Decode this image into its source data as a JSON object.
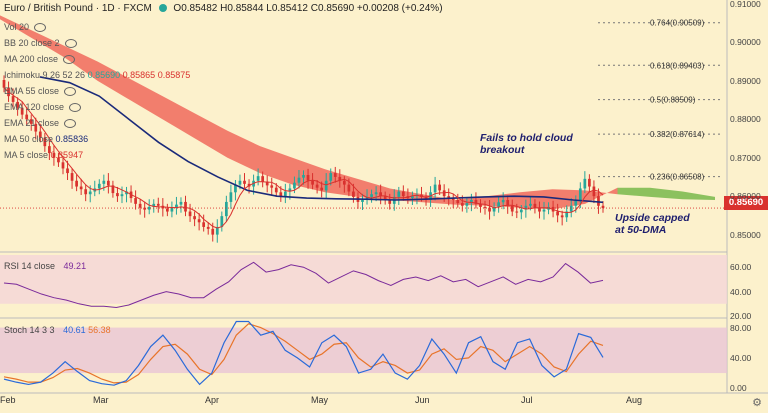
{
  "header": {
    "symbol": "Euro / British Pound",
    "interval": "1D",
    "exchange": "FXCM",
    "ohlc": "O0.85482  H0.85844  L0.85412  C0.85690  +0.00208 (+0.24%)"
  },
  "legend": {
    "vol": "Vol 20",
    "bb": "BB 20 close 2",
    "ma200": "MA 200 close",
    "ichimoku_label": "Ichimoku 9 26 52 26",
    "ichimoku_values": [
      "0.85690",
      "0.85865",
      "0.85875"
    ],
    "ema55": "EMA 55 close",
    "ema120": "EMA 120 close",
    "ema_x": "EMA 21 close",
    "ma50_label": "MA 50 close",
    "ma50_value": "0.85836",
    "ma5_label": "MA 5 close",
    "ma5_value": "0.85947"
  },
  "annotations": {
    "fail_line1": "Fails to hold cloud",
    "fail_line2": "breakout",
    "upside_line1": "Upside capped",
    "upside_line2": "at 50-DMA"
  },
  "last_price": "0.85690",
  "colors": {
    "bull": "#26a69a",
    "bear": "#d9312e",
    "cloud_bear": "#f06a5c",
    "cloud_bull": "#78b84a",
    "ma50": "#1a2a7a",
    "ma5": "#d9312e",
    "rsi": "#7a2a9a",
    "stoch_k": "#2a6ad9",
    "stoch_d": "#e8742a"
  },
  "chart_data": [
    {
      "type": "candlestick",
      "title": "Euro / British Pound 1D FXCM",
      "ylim": [
        0.846,
        0.911
      ],
      "y_ticks": [
        "0.91000",
        "0.90000",
        "0.89000",
        "0.88000",
        "0.87000",
        "0.86000",
        "0.85000"
      ],
      "x_labels": [
        "Feb",
        "Mar",
        "Apr",
        "May",
        "Jun",
        "Jul",
        "Aug"
      ],
      "fib_levels": [
        {
          "label": "0.764(0.90509)",
          "value": 0.90509
        },
        {
          "label": "0.618(0.89403)",
          "value": 0.89403
        },
        {
          "label": "0.5(0.88509)",
          "value": 0.88509
        },
        {
          "label": "0.382(0.87614)",
          "value": 0.87614
        },
        {
          "label": "0.236(0.86508)",
          "value": 0.86508
        }
      ],
      "closes": [
        0.8882,
        0.886,
        0.8845,
        0.883,
        0.8812,
        0.88,
        0.8788,
        0.8768,
        0.8752,
        0.873,
        0.8712,
        0.87,
        0.8688,
        0.8672,
        0.866,
        0.864,
        0.8625,
        0.8618,
        0.8605,
        0.8612,
        0.862,
        0.8632,
        0.864,
        0.8628,
        0.8608,
        0.86,
        0.8605,
        0.8612,
        0.8595,
        0.858,
        0.857,
        0.8565,
        0.8572,
        0.858,
        0.8575,
        0.8568,
        0.856,
        0.857,
        0.8578,
        0.8585,
        0.856,
        0.8548,
        0.854,
        0.8532,
        0.852,
        0.8515,
        0.85,
        0.852,
        0.8548,
        0.8585,
        0.861,
        0.863,
        0.864,
        0.8632,
        0.8625,
        0.864,
        0.8652,
        0.8638,
        0.8628,
        0.8622,
        0.861,
        0.86,
        0.8612,
        0.862,
        0.8635,
        0.8648,
        0.8655,
        0.864,
        0.863,
        0.8622,
        0.8615,
        0.864,
        0.866,
        0.865,
        0.864,
        0.863,
        0.8612,
        0.8598,
        0.8585,
        0.859,
        0.8598,
        0.8605,
        0.861,
        0.86,
        0.859,
        0.858,
        0.8598,
        0.8612,
        0.86,
        0.8595,
        0.86,
        0.8604,
        0.8598,
        0.859,
        0.861,
        0.863,
        0.8615,
        0.86,
        0.8594,
        0.859,
        0.8582,
        0.8575,
        0.8582,
        0.859,
        0.858,
        0.8572,
        0.857,
        0.856,
        0.8572,
        0.8584,
        0.859,
        0.8575,
        0.856,
        0.8558,
        0.8565,
        0.8575,
        0.858,
        0.857,
        0.856,
        0.8565,
        0.8572,
        0.856,
        0.855,
        0.8545,
        0.856,
        0.8575,
        0.859,
        0.862,
        0.8645,
        0.8625,
        0.86,
        0.8575,
        0.8569
      ],
      "ma50_values": [
        0.891,
        0.8895,
        0.886,
        0.88,
        0.874,
        0.869,
        0.865,
        0.8615,
        0.86,
        0.8595,
        0.8593,
        0.8592,
        0.859,
        0.8592,
        0.8595,
        0.8598,
        0.86,
        0.8598,
        0.859,
        0.8584
      ],
      "senkou_a": [
        0.907,
        0.903,
        0.899,
        0.895,
        0.8905,
        0.886,
        0.8815,
        0.877,
        0.873,
        0.87,
        0.867,
        0.8645,
        0.862,
        0.8605,
        0.859,
        0.86,
        0.861,
        0.8618,
        0.8615,
        0.8605,
        0.8598,
        0.8592,
        0.859
      ],
      "senkou_b": [
        0.906,
        0.901,
        0.896,
        0.89,
        0.885,
        0.88,
        0.875,
        0.87,
        0.866,
        0.863,
        0.861,
        0.8598,
        0.859,
        0.8584,
        0.8578,
        0.8575,
        0.857,
        0.8566,
        0.858,
        0.8622,
        0.8622,
        0.8612,
        0.8598
      ],
      "last": 0.8569
    },
    {
      "type": "line",
      "title": "RSI 14 close",
      "value_label": "49.21",
      "ylim": [
        20,
        70
      ],
      "y_ticks": [
        "60.00",
        "40.00",
        "20.00"
      ],
      "band": [
        30,
        70
      ],
      "values": [
        47,
        46,
        42,
        38,
        35,
        33,
        30,
        28,
        28,
        27,
        29,
        33,
        37,
        40,
        38,
        35,
        35,
        42,
        48,
        58,
        64,
        56,
        58,
        62,
        60,
        55,
        47,
        52,
        57,
        54,
        49,
        45,
        50,
        52,
        49,
        53,
        48,
        50,
        44,
        48,
        52,
        46,
        50,
        48,
        52,
        63,
        56,
        47,
        49.2
      ]
    },
    {
      "type": "line",
      "title": "Stoch 14 3 3",
      "value_labels": [
        "40.61",
        "56.38"
      ],
      "ylim": [
        -5,
        90
      ],
      "y_ticks": [
        "80.00",
        "40.00",
        "0.00"
      ],
      "band": [
        20,
        80
      ],
      "k_values": [
        12,
        8,
        5,
        8,
        20,
        35,
        22,
        10,
        6,
        4,
        10,
        30,
        55,
        70,
        50,
        25,
        5,
        20,
        60,
        88,
        88,
        70,
        75,
        50,
        40,
        28,
        60,
        70,
        55,
        20,
        25,
        45,
        20,
        12,
        30,
        65,
        45,
        20,
        60,
        68,
        35,
        25,
        60,
        65,
        30,
        15,
        25,
        72,
        67,
        40.6
      ],
      "d_values": [
        15,
        12,
        8,
        8,
        14,
        24,
        26,
        20,
        12,
        7,
        8,
        18,
        38,
        55,
        58,
        45,
        25,
        18,
        38,
        70,
        85,
        80,
        72,
        62,
        50,
        38,
        45,
        58,
        60,
        40,
        28,
        35,
        30,
        20,
        24,
        45,
        52,
        38,
        40,
        55,
        50,
        35,
        45,
        55,
        45,
        28,
        22,
        45,
        62,
        56.4
      ]
    }
  ]
}
